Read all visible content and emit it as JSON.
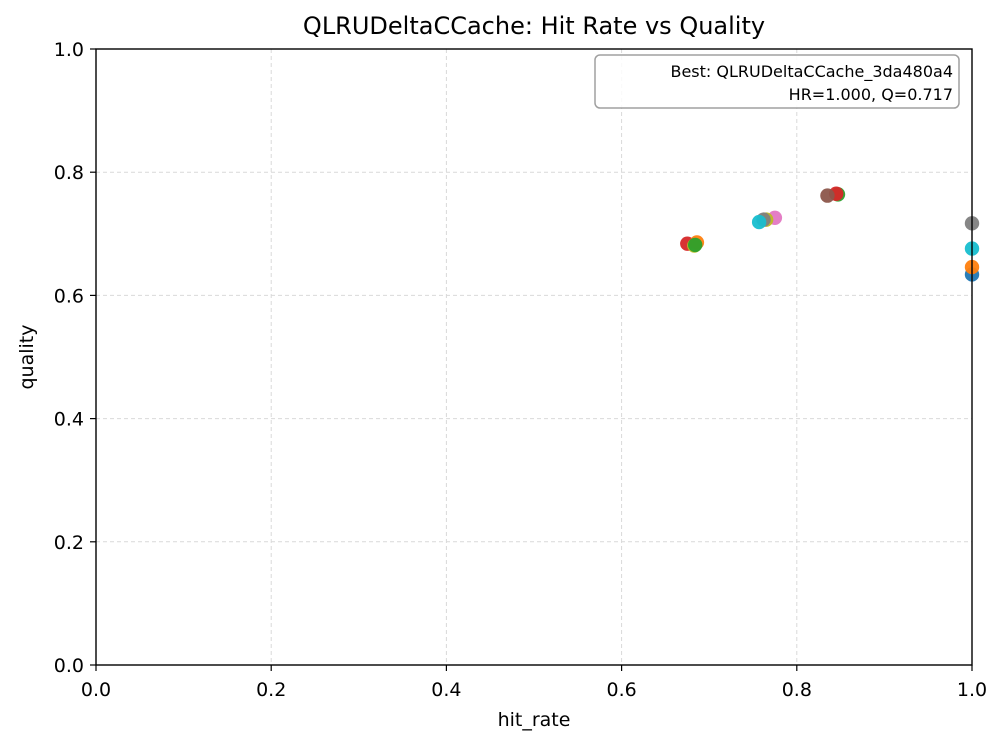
{
  "chart_data": {
    "type": "scatter",
    "title": "QLRUDeltaCCache: Hit Rate vs Quality",
    "xlabel": "hit_rate",
    "ylabel": "quality",
    "xlim": [
      0.0,
      1.0
    ],
    "ylim": [
      0.0,
      1.0
    ],
    "xticks": [
      "0.0",
      "0.2",
      "0.4",
      "0.6",
      "0.8",
      "1.0"
    ],
    "yticks": [
      "0.0",
      "0.2",
      "0.4",
      "0.6",
      "0.8",
      "1.0"
    ],
    "grid": true,
    "annotation": {
      "line1": "Best: QLRUDeltaCCache_3da480a4",
      "line2": "HR=1.000, Q=0.717",
      "placement": "top-right"
    },
    "points": [
      {
        "x": 0.675,
        "y": 0.684,
        "color": "#d62728"
      },
      {
        "x": 0.683,
        "y": 0.681,
        "color": "#bcbd22"
      },
      {
        "x": 0.686,
        "y": 0.686,
        "color": "#ff7f0e"
      },
      {
        "x": 0.684,
        "y": 0.682,
        "color": "#2ca02c"
      },
      {
        "x": 0.775,
        "y": 0.726,
        "color": "#e377c2"
      },
      {
        "x": 0.765,
        "y": 0.723,
        "color": "#bcbd22"
      },
      {
        "x": 0.762,
        "y": 0.723,
        "color": "#7f7f7f"
      },
      {
        "x": 0.757,
        "y": 0.719,
        "color": "#17becf"
      },
      {
        "x": 0.847,
        "y": 0.764,
        "color": "#2ca02c"
      },
      {
        "x": 0.845,
        "y": 0.765,
        "color": "#d62728"
      },
      {
        "x": 0.835,
        "y": 0.762,
        "color": "#8c564b"
      },
      {
        "x": 1.0,
        "y": 0.717,
        "color": "#7f7f7f"
      },
      {
        "x": 1.0,
        "y": 0.676,
        "color": "#17becf"
      },
      {
        "x": 1.0,
        "y": 0.634,
        "color": "#1f77b4"
      },
      {
        "x": 1.0,
        "y": 0.646,
        "color": "#ff7f0e"
      }
    ]
  }
}
